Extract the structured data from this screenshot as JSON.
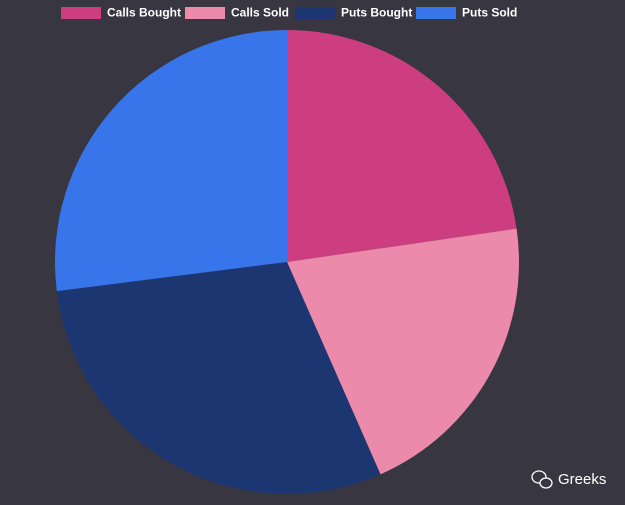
{
  "chart_data": {
    "type": "pie",
    "categories": [
      "Calls Bought",
      "Calls Sold",
      "Puts Bought",
      "Puts Sold"
    ],
    "values": [
      22.7,
      20.7,
      29.6,
      27.0
    ],
    "colors": [
      "#cc3e80",
      "#ec8aac",
      "#1b3670",
      "#3874ea"
    ],
    "legend": "top"
  },
  "watermark": "Greeks"
}
